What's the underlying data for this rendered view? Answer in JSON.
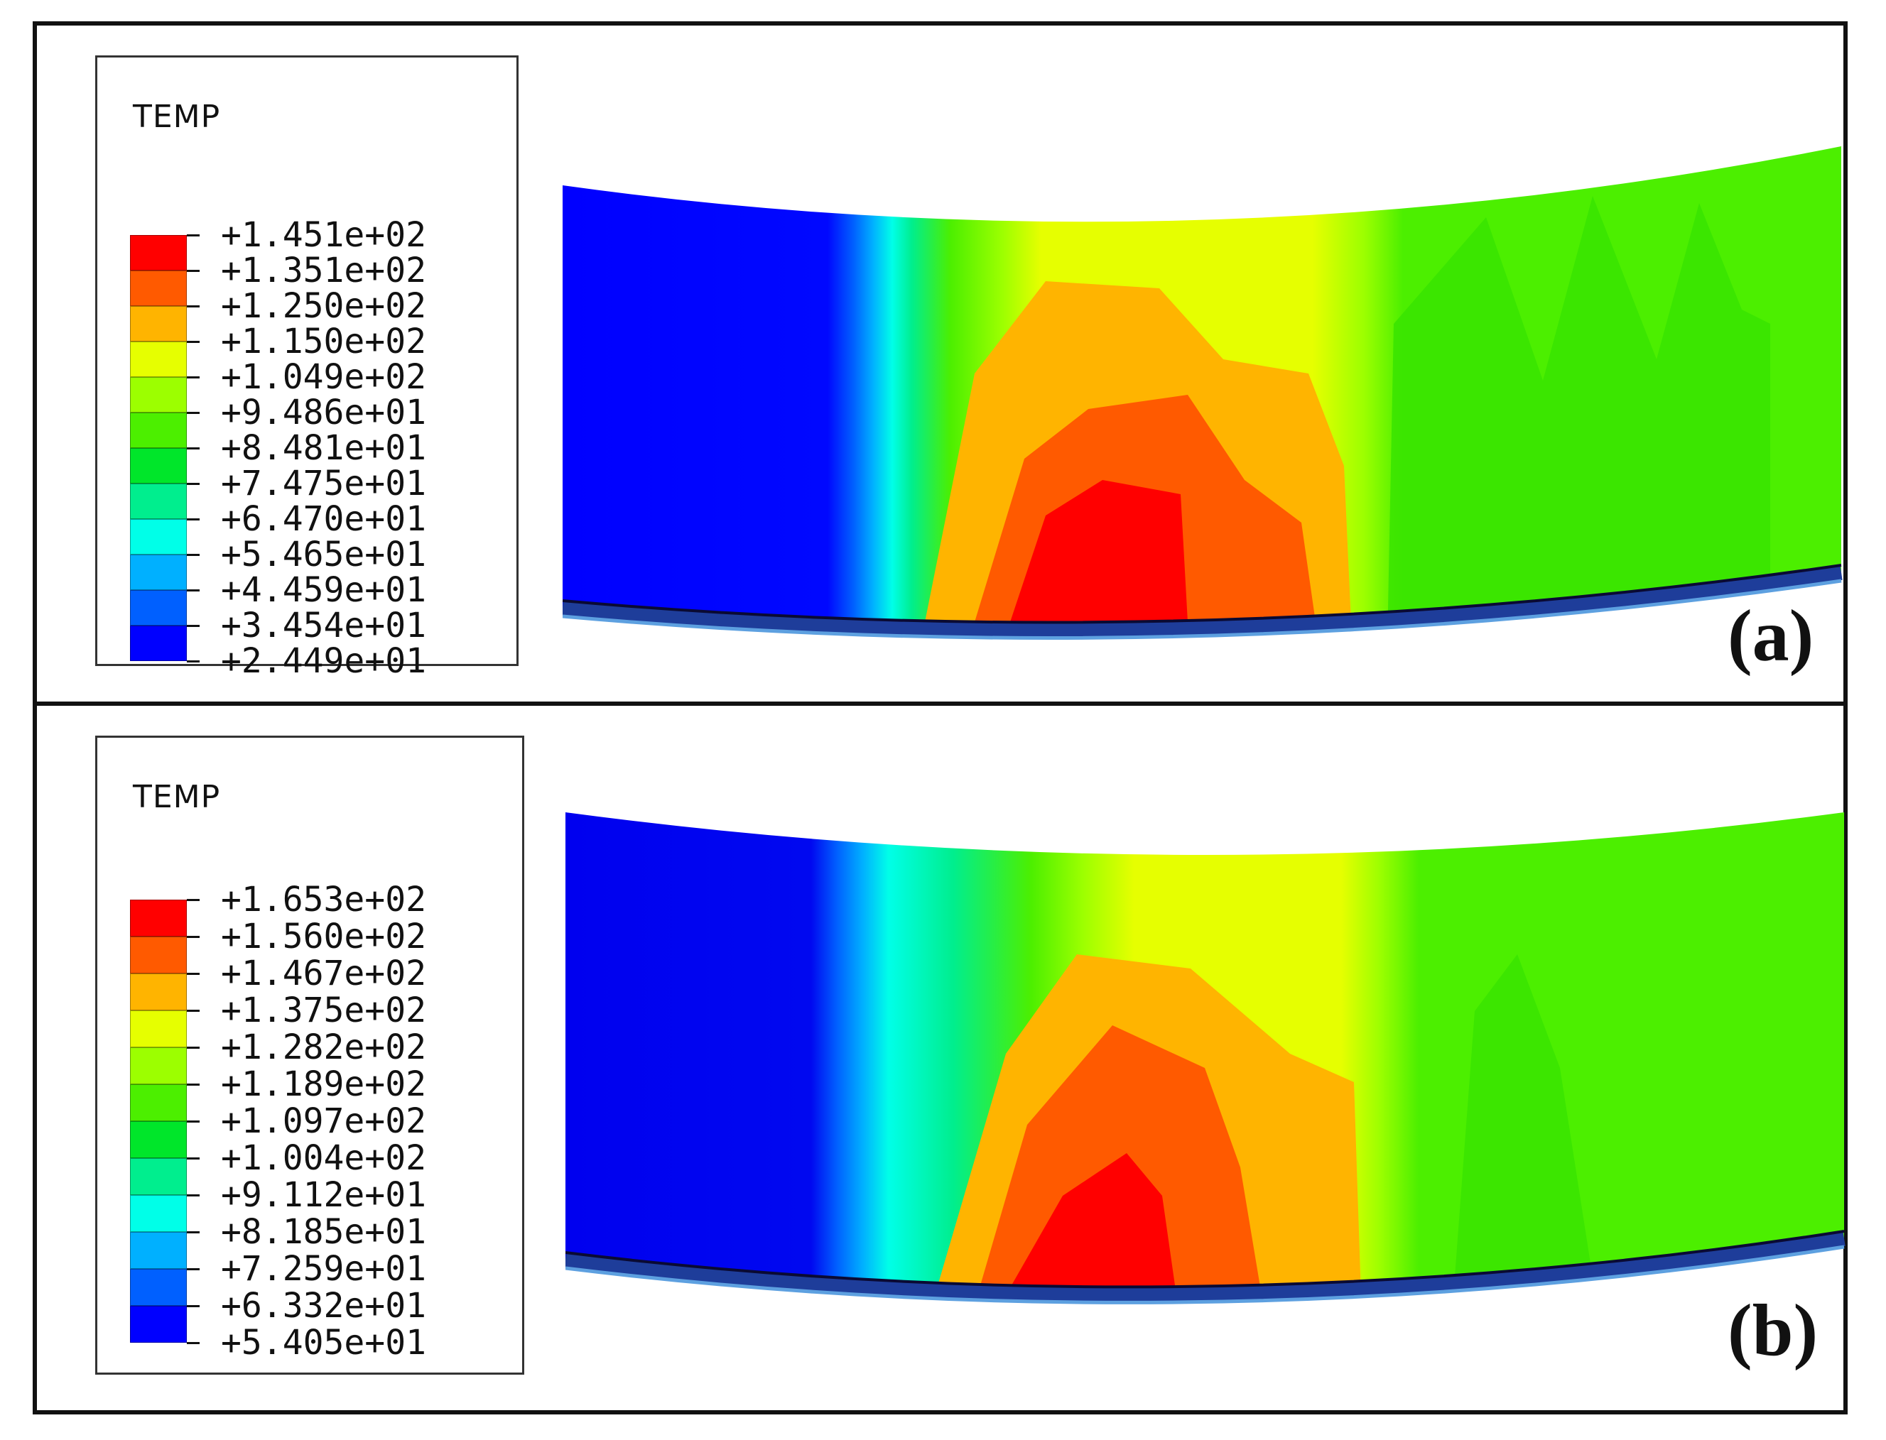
{
  "panels": [
    {
      "label": "(a)",
      "legend": {
        "title": "TEMP",
        "ticks": [
          "+1.451e+02",
          "+1.351e+02",
          "+1.250e+02",
          "+1.150e+02",
          "+1.049e+02",
          "+9.486e+01",
          "+8.481e+01",
          "+7.475e+01",
          "+6.470e+01",
          "+5.465e+01",
          "+4.459e+01",
          "+3.454e+01",
          "+2.449e+01"
        ]
      }
    },
    {
      "label": "(b)",
      "legend": {
        "title": "TEMP",
        "ticks": [
          "+1.653e+02",
          "+1.560e+02",
          "+1.467e+02",
          "+1.375e+02",
          "+1.282e+02",
          "+1.189e+02",
          "+1.097e+02",
          "+1.004e+02",
          "+9.112e+01",
          "+8.185e+01",
          "+7.259e+01",
          "+6.332e+01",
          "+5.405e+01"
        ]
      }
    }
  ],
  "colors": {
    "contour_scale_high_to_low": [
      "#ff0000",
      "#ff5a00",
      "#ffb400",
      "#e6ff00",
      "#9cff00",
      "#4cef00",
      "#00e62a",
      "#00ee8e",
      "#00ffe8",
      "#00b0ff",
      "#0060ff",
      "#0000ff"
    ]
  }
}
